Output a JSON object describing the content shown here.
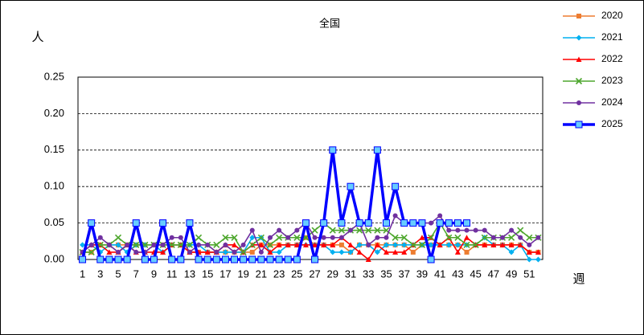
{
  "chart_data": {
    "type": "line",
    "title": "全国",
    "y_label": "人",
    "x_label": "週",
    "x": [
      1,
      2,
      3,
      4,
      5,
      6,
      7,
      8,
      9,
      10,
      11,
      12,
      13,
      14,
      15,
      16,
      17,
      18,
      19,
      20,
      21,
      22,
      23,
      24,
      25,
      26,
      27,
      28,
      29,
      30,
      31,
      32,
      33,
      34,
      35,
      36,
      37,
      38,
      39,
      40,
      41,
      42,
      43,
      44,
      45,
      46,
      47,
      48,
      49,
      50,
      51,
      52
    ],
    "xlim": [
      0.5,
      52.5
    ],
    "xticks": [
      1,
      3,
      5,
      7,
      9,
      11,
      13,
      15,
      17,
      19,
      21,
      23,
      25,
      27,
      29,
      31,
      33,
      35,
      37,
      39,
      41,
      43,
      45,
      47,
      49,
      51
    ],
    "ylim": [
      0,
      0.25
    ],
    "yticks": [
      {
        "value": 0,
        "label": "0.00"
      },
      {
        "value": 0.05,
        "label": "0.05"
      },
      {
        "value": 0.1,
        "label": "0.10"
      },
      {
        "value": 0.15,
        "label": "0.15"
      },
      {
        "value": 0.2,
        "label": "0.20"
      },
      {
        "value": 0.25,
        "label": "0.25"
      }
    ],
    "grid": true,
    "legend": "right",
    "series": [
      {
        "name": "2020",
        "color": "#ed7d31",
        "marker": "square",
        "values": [
          0.01,
          0.01,
          0.02,
          0.02,
          0.02,
          0.02,
          0.02,
          0.02,
          0.02,
          0.02,
          0.02,
          0.02,
          0.01,
          0.01,
          0.01,
          0.01,
          0.01,
          0.01,
          0.01,
          0.01,
          0.02,
          0.02,
          0.02,
          0.02,
          0.02,
          0.03,
          0.02,
          0.02,
          0.02,
          0.02,
          0.01,
          0.02,
          0.02,
          0.02,
          0.02,
          0.02,
          0.02,
          0.01,
          0.02,
          0.02,
          0.02,
          0.02,
          0.02,
          0.01,
          0.02,
          0.02,
          0.02,
          0.02,
          0.02,
          0.02,
          0.01,
          0.01
        ]
      },
      {
        "name": "2021",
        "color": "#00b0f0",
        "marker": "diamond",
        "values": [
          0.02,
          0.02,
          0.01,
          0.02,
          0.02,
          0.01,
          0.02,
          0.02,
          0.02,
          0.01,
          0.02,
          0.02,
          0.02,
          0.02,
          0.01,
          0.01,
          0.01,
          0.01,
          0.01,
          0.03,
          0.03,
          0.01,
          0.01,
          0.02,
          0.02,
          0.02,
          0.02,
          0.02,
          0.01,
          0.01,
          0.01,
          0.02,
          0.02,
          0.01,
          0.02,
          0.02,
          0.02,
          0.02,
          0.02,
          0.02,
          0.02,
          0.02,
          0.02,
          0.02,
          0.02,
          0.03,
          0.02,
          0.02,
          0.01,
          0.02,
          0,
          0
        ]
      },
      {
        "name": "2022",
        "color": "#ff0000",
        "marker": "triangle",
        "values": [
          0.01,
          0.02,
          0.02,
          0.01,
          0.01,
          0.02,
          0.01,
          0.01,
          0.01,
          0.01,
          0.02,
          0.02,
          0.01,
          0.01,
          0.01,
          0.01,
          0.02,
          0.02,
          0.01,
          0.02,
          0.02,
          0.01,
          0.02,
          0.02,
          0.02,
          0.02,
          0.02,
          0.02,
          0.02,
          0.03,
          0.02,
          0.01,
          0,
          0.02,
          0.01,
          0.01,
          0.01,
          0.02,
          0.03,
          0.03,
          0.02,
          0.03,
          0.01,
          0.03,
          0.02,
          0.02,
          0.02,
          0.02,
          0.02,
          0.02,
          0.01,
          0.01
        ]
      },
      {
        "name": "2023",
        "color": "#4ea72e",
        "marker": "cross",
        "values": [
          0.01,
          0.01,
          0.02,
          0.02,
          0.03,
          0.02,
          0.02,
          0.02,
          0.02,
          0.02,
          0.02,
          0.02,
          0.02,
          0.03,
          0.02,
          0.02,
          0.03,
          0.03,
          0.01,
          0.02,
          0.03,
          0.02,
          0.03,
          0.03,
          0.03,
          0.03,
          0.04,
          0.05,
          0.04,
          0.04,
          0.04,
          0.04,
          0.04,
          0.04,
          0.04,
          0.03,
          0.03,
          0.02,
          0.02,
          0.03,
          0.05,
          0.03,
          0.03,
          0.02,
          0.02,
          0.03,
          0.03,
          0.03,
          0.03,
          0.04,
          0.03,
          0.03
        ]
      },
      {
        "name": "2024",
        "color": "#7030a0",
        "marker": "circle",
        "values": [
          0.01,
          0.02,
          0.03,
          0.02,
          0.01,
          0.02,
          0.01,
          0.01,
          0.02,
          0.02,
          0.03,
          0.03,
          0.01,
          0.02,
          0.02,
          0.01,
          0.02,
          0.01,
          0.02,
          0.04,
          0.01,
          0.03,
          0.04,
          0.03,
          0.04,
          0.05,
          0.03,
          0.03,
          0.03,
          0.03,
          0.04,
          0.05,
          0.02,
          0.03,
          0.03,
          0.06,
          0.05,
          0.05,
          0.05,
          0.05,
          0.06,
          0.04,
          0.04,
          0.04,
          0.04,
          0.04,
          0.03,
          0.03,
          0.04,
          0.03,
          0.02,
          0.03
        ]
      },
      {
        "name": "2025",
        "color": "#0000ff",
        "marker": "square-big",
        "values": [
          0,
          0.05,
          0,
          0,
          0,
          0,
          0.05,
          0,
          0,
          0.05,
          0,
          0,
          0.05,
          0,
          0,
          0,
          0,
          0,
          0,
          0,
          0,
          0,
          0,
          0,
          0,
          0.05,
          0,
          0.05,
          0.15,
          0.05,
          0.1,
          0.05,
          0.05,
          0.15,
          0.05,
          0.1,
          0.05,
          0.05,
          0.05,
          0,
          0.05,
          0.05,
          0.05,
          0.05,
          null,
          null,
          null,
          null,
          null,
          null,
          null,
          null
        ]
      }
    ]
  }
}
